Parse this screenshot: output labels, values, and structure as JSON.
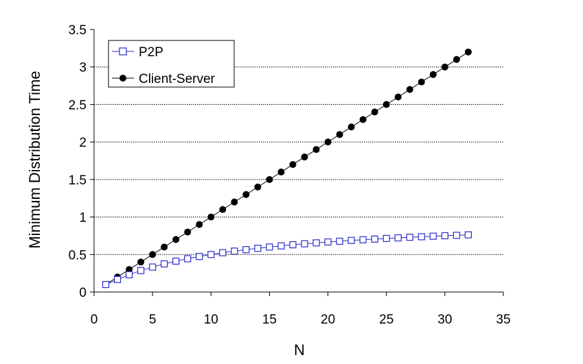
{
  "chart_data": {
    "type": "line",
    "title": "",
    "xlabel": "N",
    "ylabel": "Minimum Distribution Time",
    "xlim": [
      0,
      35
    ],
    "ylim": [
      0,
      3.5
    ],
    "xticks": [
      0,
      5,
      10,
      15,
      20,
      25,
      30,
      35
    ],
    "yticks": [
      0,
      0.5,
      1,
      1.5,
      2,
      2.5,
      3,
      3.5
    ],
    "grid": "horizontal",
    "legend_position": "top-left",
    "x": [
      1,
      2,
      3,
      4,
      5,
      6,
      7,
      8,
      9,
      10,
      11,
      12,
      13,
      14,
      15,
      16,
      17,
      18,
      19,
      20,
      21,
      22,
      23,
      24,
      25,
      26,
      27,
      28,
      29,
      30,
      31,
      32
    ],
    "series": [
      {
        "name": "P2P",
        "color": "#2b2bd0",
        "marker": "open-square",
        "values": [
          0.1,
          0.167,
          0.23,
          0.286,
          0.333,
          0.375,
          0.412,
          0.444,
          0.474,
          0.5,
          0.524,
          0.545,
          0.565,
          0.583,
          0.6,
          0.615,
          0.63,
          0.643,
          0.655,
          0.667,
          0.677,
          0.688,
          0.697,
          0.706,
          0.714,
          0.722,
          0.73,
          0.737,
          0.744,
          0.75,
          0.756,
          0.762
        ]
      },
      {
        "name": "Client-Server",
        "color": "#000000",
        "marker": "filled-circle",
        "values": [
          0.1,
          0.2,
          0.3,
          0.4,
          0.5,
          0.6,
          0.7,
          0.8,
          0.9,
          1.0,
          1.1,
          1.2,
          1.3,
          1.4,
          1.5,
          1.6,
          1.7,
          1.8,
          1.9,
          2.0,
          2.1,
          2.2,
          2.3,
          2.4,
          2.5,
          2.6,
          2.7,
          2.8,
          2.9,
          3.0,
          3.1,
          3.2
        ]
      }
    ]
  }
}
